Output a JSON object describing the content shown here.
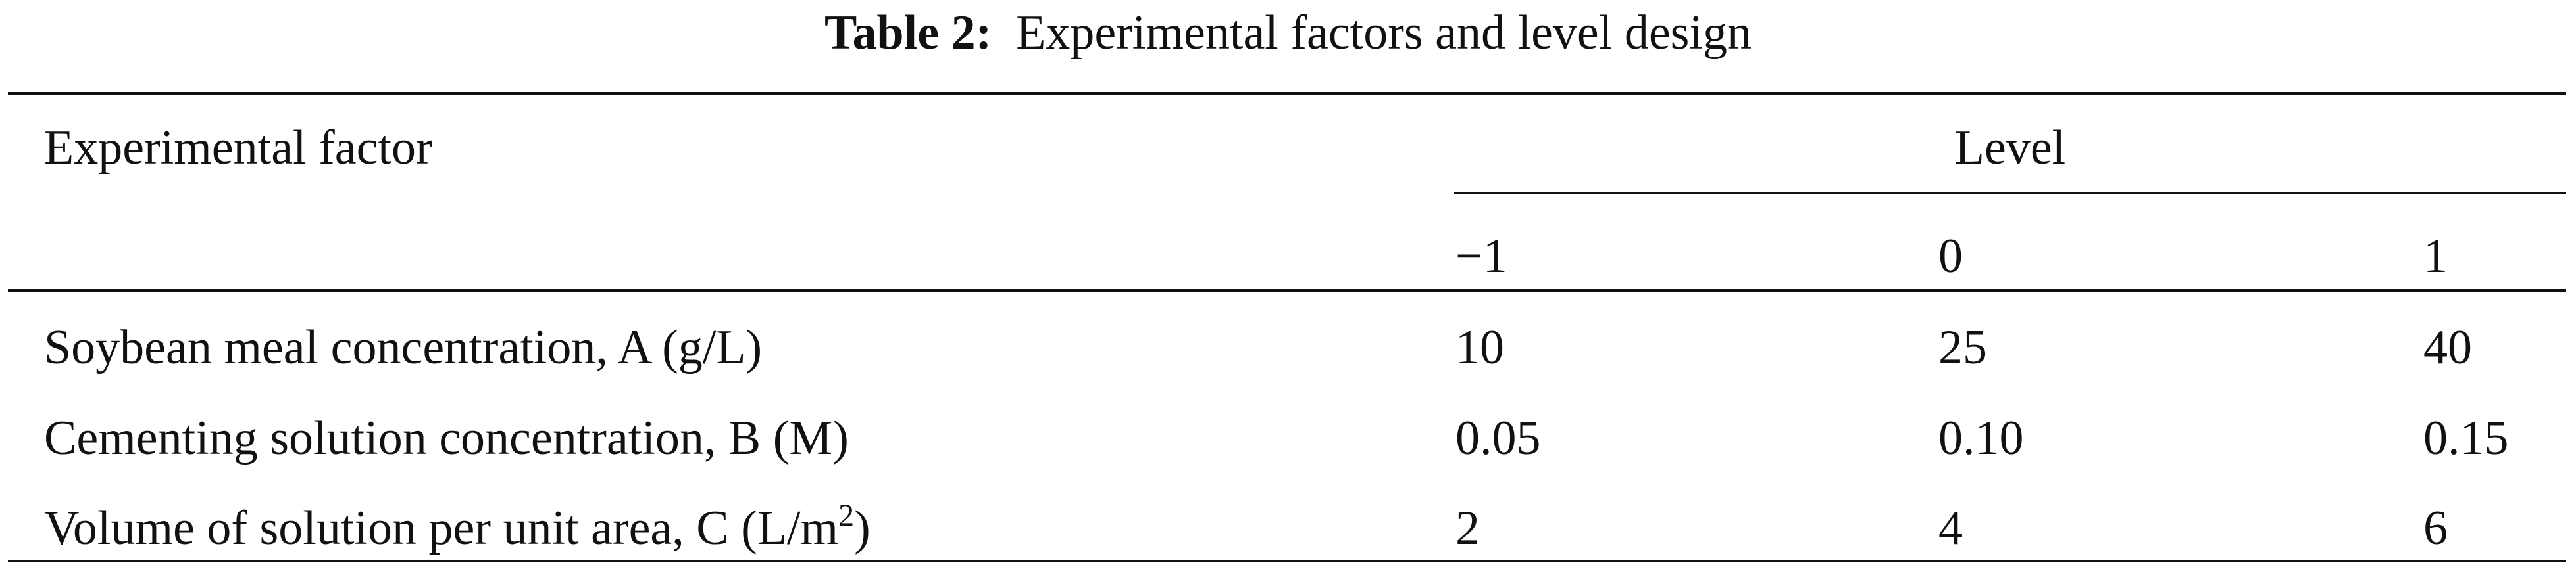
{
  "title": {
    "label": "Table 2:",
    "text": "Experimental factors and level design"
  },
  "table": {
    "header": {
      "factor": "Experimental factor",
      "level": "Level",
      "levels": [
        "−1",
        "0",
        "1"
      ]
    },
    "rows": [
      {
        "factor": [
          "Soybean meal concentration, A (g/L)"
        ],
        "values": [
          "10",
          "25",
          "40"
        ]
      },
      {
        "factor": [
          "Cementing solution concentration, B (M)"
        ],
        "values": [
          "0.05",
          "0.10",
          "0.15"
        ]
      },
      {
        "factor": [
          "Volume of solution per unit area, C (L/m",
          "2",
          ")"
        ],
        "values": [
          "2",
          "4",
          "6"
        ]
      }
    ]
  }
}
